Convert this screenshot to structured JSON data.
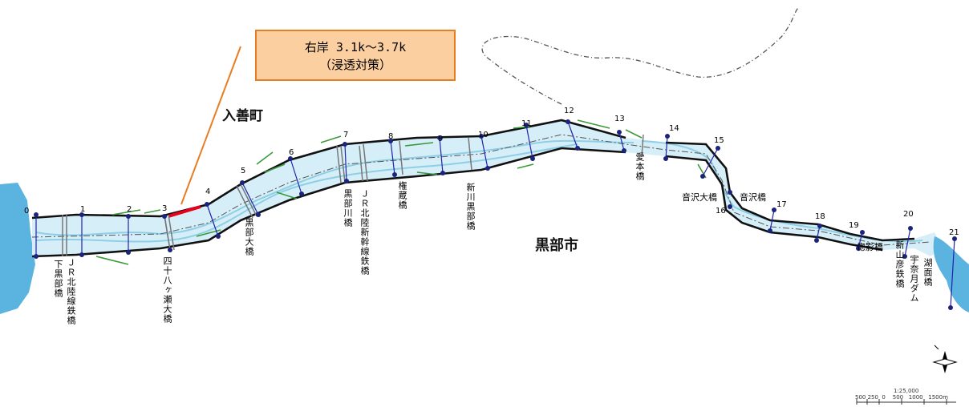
{
  "callout": {
    "line1": "右岸 3.1k～3.7k",
    "line2": "（浸透対策）"
  },
  "towns": {
    "west": "入善町",
    "east": "黒部市"
  },
  "km_markers": [
    "0",
    "1",
    "2",
    "3",
    "4",
    "5",
    "6",
    "7",
    "8",
    "9",
    "10",
    "11",
    "12",
    "13",
    "14",
    "15",
    "16",
    "17",
    "18",
    "19",
    "20",
    "21"
  ],
  "bridges": {
    "shimo_kurobe": "下黒部橋",
    "jr_hokuriku": "ＪＲ北陸線鉄橋",
    "yotsujuhasse": "四十八ヶ瀬大橋",
    "kurobe_ohashi": "黒部大橋",
    "kurobegawa": "黒部川橋",
    "shinkansen": "ＪＲ北陸新幹線鉄橋",
    "gonzo": "権蔵橋",
    "shinkawa": "新川黒部橋",
    "aimoto": "愛本橋",
    "otosawa_ohashi": "音沢大橋",
    "otosawa": "音沢橋",
    "sokage": "愡影橋",
    "shinyamahiko": "新山彦鉄橋",
    "unazuki_dam": "宇奈月ダム",
    "komen": "湖面橋"
  },
  "scale": {
    "ratio": "1:25,000",
    "ticks": "500 250  0    500   1000   1500m"
  },
  "colors": {
    "river": "#a8d8ea",
    "levee": "#111111",
    "highlight": "#e8001c",
    "callout_border": "#e67e22",
    "callout_fill": "#fbcfa0",
    "sea": "#5bb3df",
    "green_line": "#3a9a3a",
    "section_line": "#2222aa"
  }
}
